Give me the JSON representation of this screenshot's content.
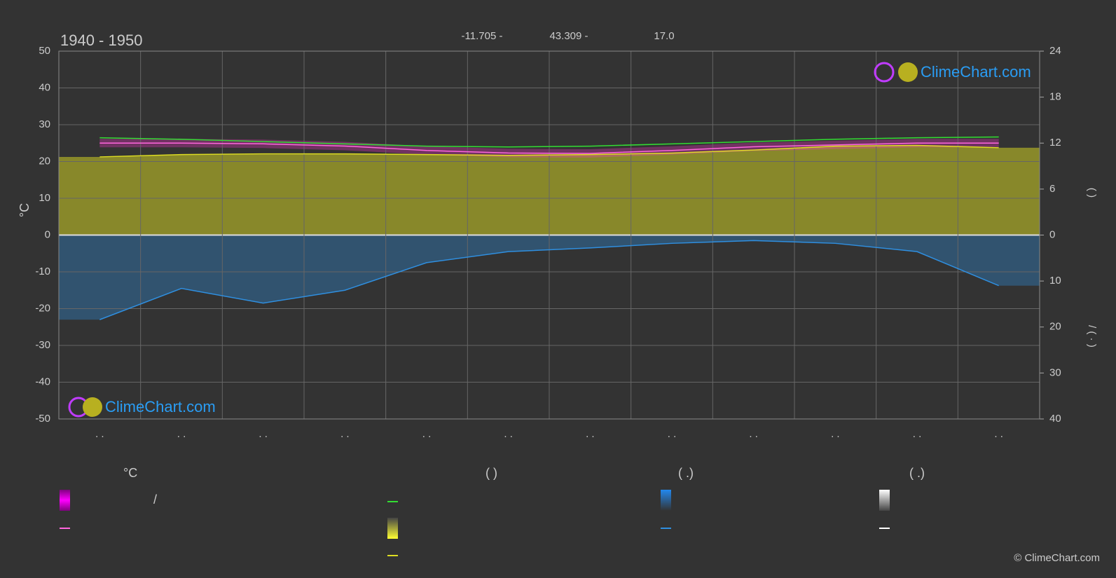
{
  "chart_data": {
    "type": "line",
    "title": "1940 - 1950",
    "annotations": [
      "-11.705 -",
      "43.309 -",
      "17.0"
    ],
    "ylabel": "°C",
    "y2label": "(     )",
    "y3label": "/   ( · )",
    "categories": [
      ". .",
      ". .",
      ". .",
      ". .",
      ". .",
      ". .",
      ". .",
      ". .",
      ". .",
      ". .",
      ". .",
      ". ."
    ],
    "ylim": [
      -50,
      50
    ],
    "yticks": [
      50,
      40,
      30,
      20,
      10,
      0,
      -10,
      -20,
      -30,
      -40,
      -50
    ],
    "y2lim": [
      0,
      24
    ],
    "y2ticks": [
      24,
      18,
      12,
      6,
      0
    ],
    "y3lim": [
      40,
      0
    ],
    "y3ticks": [
      10,
      20,
      30,
      40
    ],
    "grid": true,
    "series": [
      {
        "color": "#33dd33",
        "axis": "y2",
        "values": [
          12.7,
          12.5,
          12.2,
          11.9,
          11.6,
          11.5,
          11.6,
          11.9,
          12.2,
          12.5,
          12.7,
          12.8
        ]
      },
      {
        "color": "#dddd22",
        "axis": "y2",
        "area": true,
        "values": [
          10.2,
          10.5,
          10.6,
          10.6,
          10.5,
          10.4,
          10.5,
          10.7,
          11.1,
          11.6,
          11.7,
          11.4
        ]
      },
      {
        "color": "#ff66dd",
        "values": [
          25,
          25,
          24.8,
          24.2,
          23,
          22.3,
          22.2,
          23,
          24,
          24.5,
          25,
          25
        ]
      },
      {
        "color": "#2f8fe0",
        "axis": "y3",
        "area": true,
        "values": [
          18.4,
          11.6,
          14.8,
          12,
          6,
          3.6,
          2.8,
          1.8,
          1.2,
          1.8,
          3.6,
          11
        ]
      }
    ],
    "legend_headings": [
      "°C",
      "(          )",
      "(   .)",
      "(   .)"
    ],
    "legend_slash": "/",
    "watermark": "ClimeChart.com",
    "copyright": "© ClimeChart.com"
  }
}
